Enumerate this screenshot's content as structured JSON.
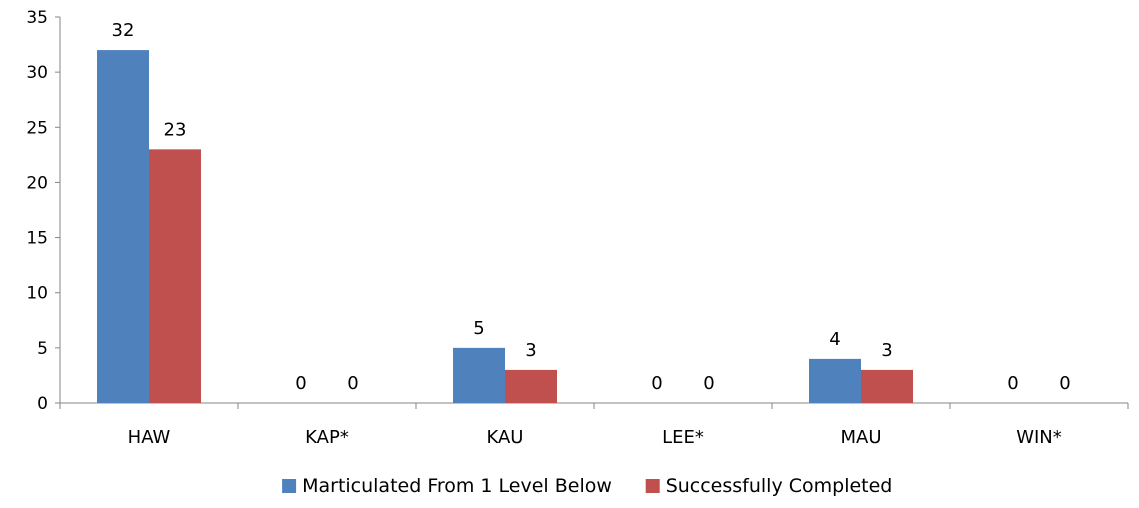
{
  "chart_data": {
    "type": "bar",
    "title": "",
    "xlabel": "",
    "ylabel": "",
    "categories": [
      "HAW",
      "KAP*",
      "KAU",
      "LEE*",
      "MAU",
      "WIN*"
    ],
    "series": [
      {
        "name": "Marticulated From 1 Level Below",
        "color": "#4F81BD",
        "values": [
          32,
          0,
          5,
          0,
          4,
          0
        ]
      },
      {
        "name": "Successfully Completed",
        "color": "#C0504D",
        "values": [
          23,
          0,
          3,
          0,
          3,
          0
        ]
      }
    ],
    "ylim": [
      0,
      35
    ],
    "yticks": [
      0,
      5,
      10,
      15,
      20,
      25,
      30,
      35
    ],
    "grid": false,
    "legend_position": "bottom",
    "data_labels": true
  }
}
